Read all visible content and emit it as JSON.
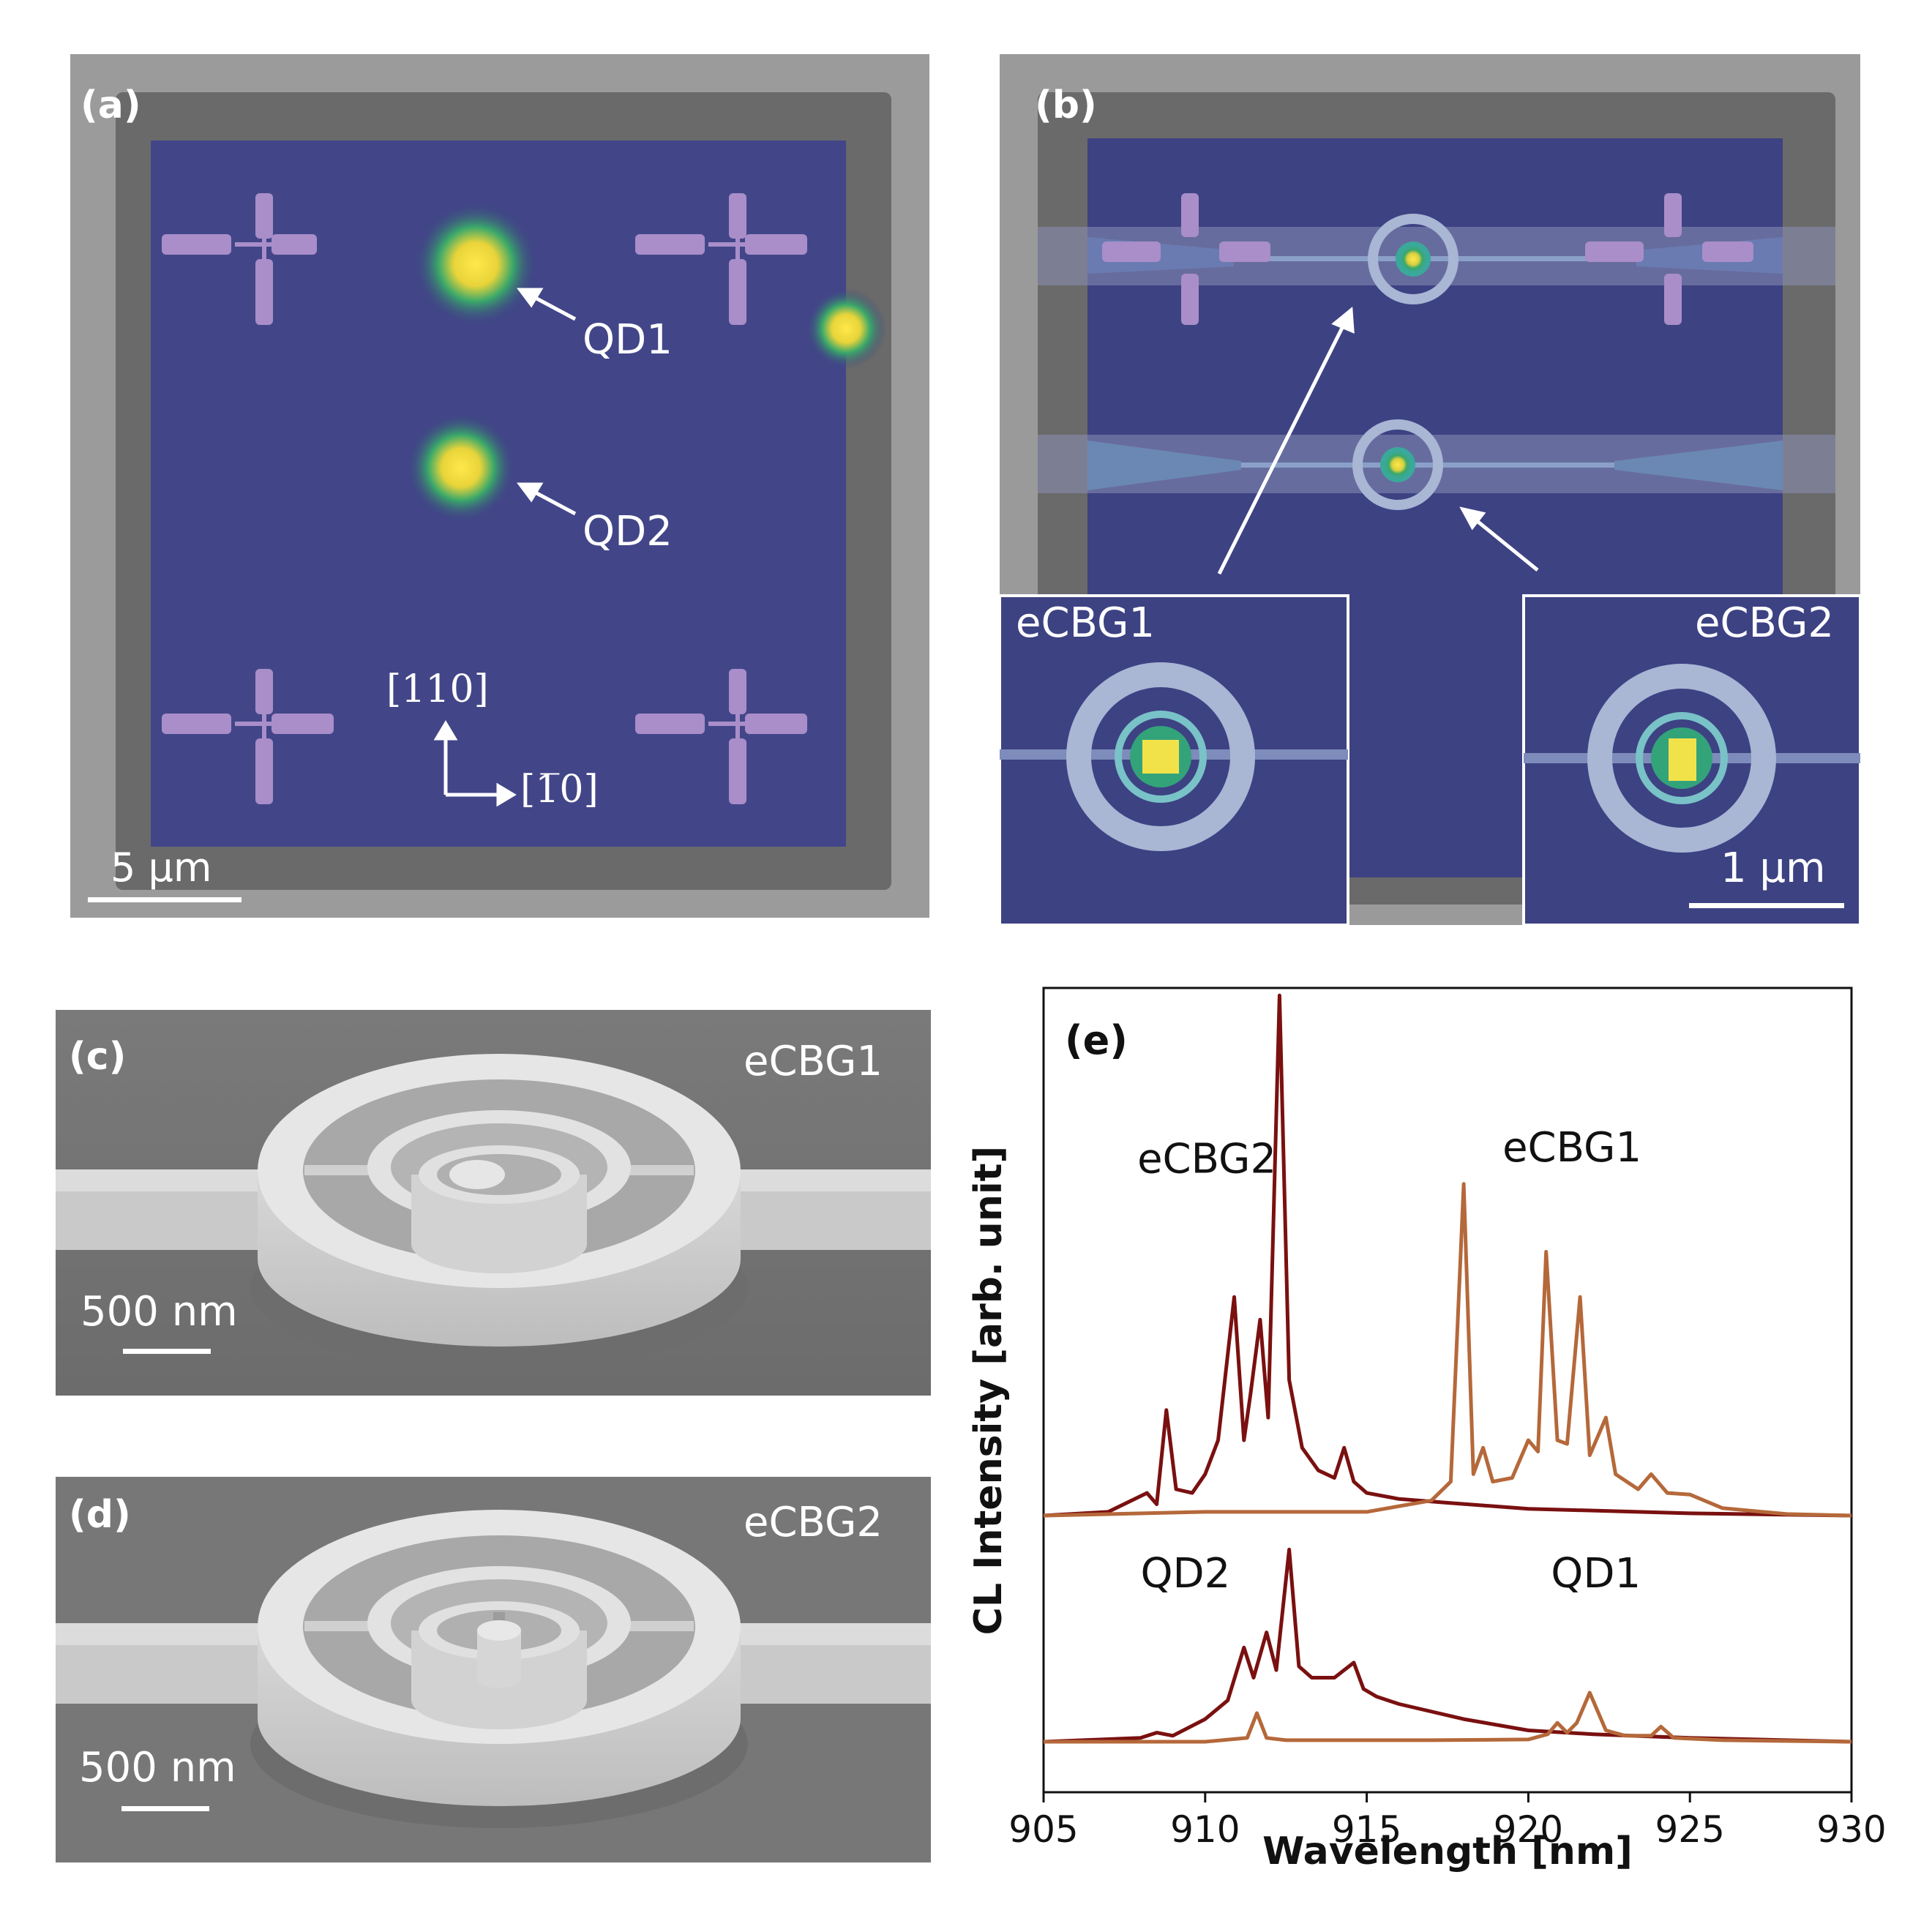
{
  "panel_a": {
    "label": "(a)",
    "qd1_label": "QD1",
    "qd2_label": "QD2",
    "axis_up": "[110]",
    "axis_right": "[1̅0]",
    "scale_bar": "5 μm"
  },
  "panel_b": {
    "label": "(b)",
    "inset_left_label": "eCBG1",
    "inset_right_label": "eCBG2",
    "scale_bar": "1 μm"
  },
  "panel_c": {
    "label": "(c)",
    "device": "eCBG1",
    "scale_bar": "500 nm"
  },
  "panel_d": {
    "label": "(d)",
    "device": "eCBG2",
    "scale_bar": "500 nm"
  },
  "colors": {
    "ecbg2": "#7a1010",
    "ecbg1": "#b5683a",
    "overlay": "#3a3f82"
  },
  "chart_data": {
    "type": "line",
    "panel_label": "(e)",
    "xlabel": "Wavelength [nm]",
    "ylabel": "CL Intensity [arb. unit]",
    "xlim": [
      905,
      930
    ],
    "xticks": [
      905,
      910,
      915,
      920,
      925,
      930
    ],
    "ylim": [
      0,
      10
    ],
    "yticks_shown": false,
    "annotations": [
      {
        "text": "eCBG2",
        "x": 907.9,
        "y": 7.55
      },
      {
        "text": "eCBG1",
        "x": 919.2,
        "y": 7.7
      },
      {
        "text": "QD2",
        "x": 908.0,
        "y": 2.05
      },
      {
        "text": "QD1",
        "x": 920.7,
        "y": 2.05
      }
    ],
    "series": [
      {
        "name": "eCBG2",
        "color": "#7a1010",
        "baseline": 3.0,
        "x": [
          905,
          907,
          908.2,
          908.5,
          908.8,
          909.1,
          909.6,
          910,
          910.4,
          910.9,
          911.2,
          911.4,
          911.7,
          911.95,
          912.3,
          912.6,
          913,
          913.5,
          914,
          914.3,
          914.6,
          915,
          916,
          917.5,
          920,
          925,
          930
        ],
        "y": [
          3.0,
          3.05,
          3.3,
          3.15,
          4.4,
          3.35,
          3.3,
          3.55,
          4.0,
          5.9,
          4.0,
          4.6,
          5.6,
          4.3,
          9.9,
          4.8,
          3.9,
          3.6,
          3.5,
          3.9,
          3.45,
          3.3,
          3.22,
          3.17,
          3.09,
          3.03,
          3.0
        ]
      },
      {
        "name": "eCBG1",
        "color": "#b5683a",
        "baseline": 3.0,
        "x": [
          905,
          910,
          915,
          917,
          917.6,
          918.0,
          918.3,
          918.6,
          918.9,
          919.5,
          920.0,
          920.3,
          920.55,
          920.9,
          921.2,
          921.6,
          921.9,
          922.4,
          922.7,
          923.4,
          923.8,
          924.3,
          925,
          926,
          928,
          930
        ],
        "y": [
          3.0,
          3.05,
          3.05,
          3.2,
          3.45,
          7.4,
          3.55,
          3.9,
          3.45,
          3.5,
          4.0,
          3.85,
          6.5,
          4.0,
          3.95,
          5.9,
          3.8,
          4.3,
          3.55,
          3.35,
          3.55,
          3.3,
          3.28,
          3.1,
          3.02,
          3.0
        ]
      },
      {
        "name": "QD2",
        "color": "#7a1010",
        "baseline": 0.0,
        "x": [
          905,
          908,
          908.5,
          909,
          910,
          910.7,
          911.2,
          911.5,
          911.9,
          912.2,
          912.6,
          912.9,
          913.3,
          914,
          914.6,
          914.9,
          915.3,
          916,
          918,
          920,
          922,
          925,
          930
        ],
        "y": [
          0.0,
          0.05,
          0.12,
          0.08,
          0.3,
          0.55,
          1.25,
          0.85,
          1.45,
          0.95,
          2.55,
          1.0,
          0.85,
          0.85,
          1.05,
          0.7,
          0.6,
          0.5,
          0.3,
          0.15,
          0.1,
          0.05,
          0.0
        ]
      },
      {
        "name": "QD1",
        "color": "#b5683a",
        "baseline": 0.0,
        "x": [
          905,
          910,
          911.3,
          911.6,
          911.9,
          912.5,
          915,
          917,
          920,
          920.6,
          920.9,
          921.2,
          921.5,
          921.9,
          922.4,
          923,
          923.8,
          924.1,
          924.5,
          926,
          930
        ],
        "y": [
          0.0,
          0.0,
          0.05,
          0.38,
          0.05,
          0.02,
          0.02,
          0.02,
          0.03,
          0.1,
          0.25,
          0.12,
          0.25,
          0.65,
          0.15,
          0.08,
          0.08,
          0.2,
          0.05,
          0.02,
          0.0
        ]
      }
    ]
  }
}
